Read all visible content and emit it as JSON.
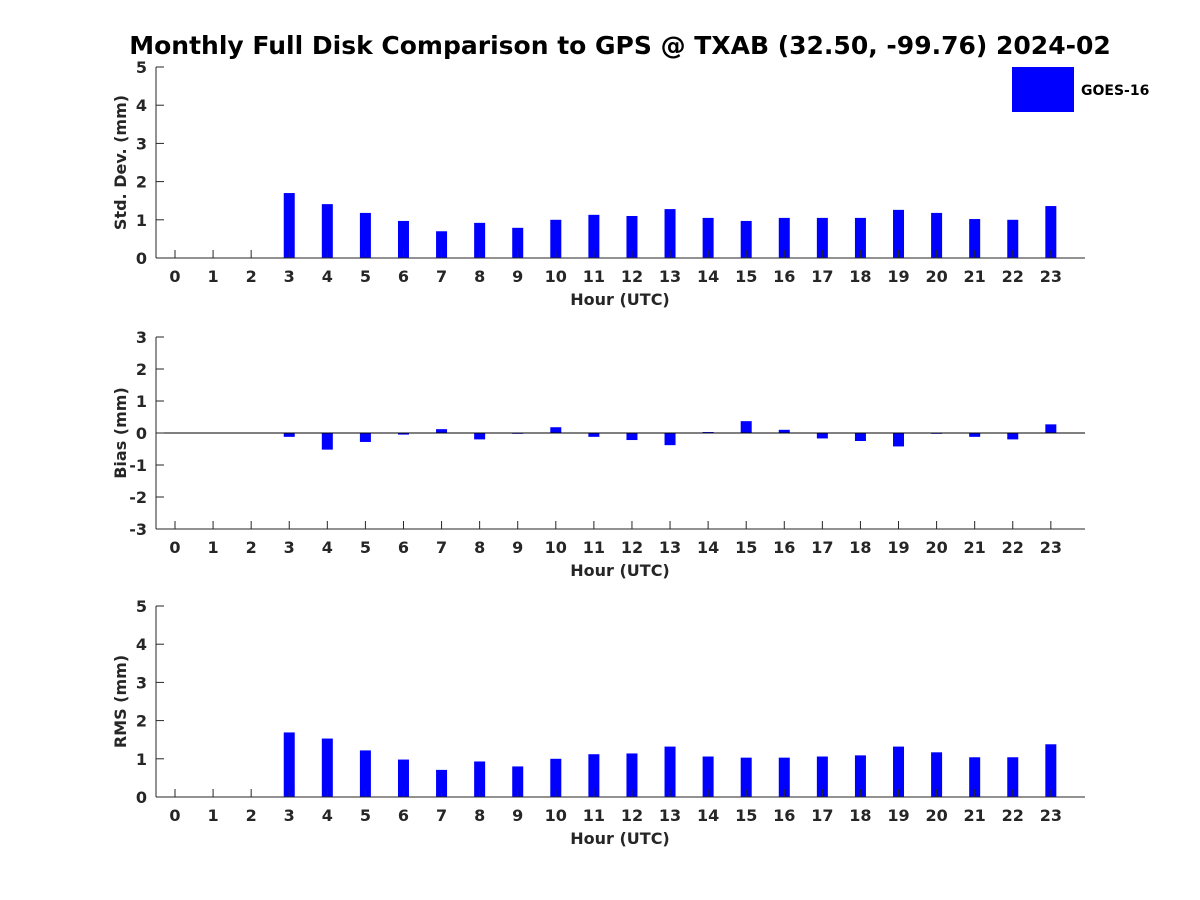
{
  "chart_data": {
    "type": "bar",
    "title": "Monthly Full Disk Comparison to GPS @ TXAB (32.50, -99.76) 2024-02",
    "colors": {
      "bar": "#0000ff",
      "axis": "#262626",
      "text": "#262626"
    },
    "legend": {
      "label": "GOES-16",
      "position": "top-right"
    },
    "categories": [
      "0",
      "1",
      "2",
      "3",
      "4",
      "5",
      "6",
      "7",
      "8",
      "9",
      "10",
      "11",
      "12",
      "13",
      "14",
      "15",
      "16",
      "17",
      "18",
      "19",
      "20",
      "21",
      "22",
      "23"
    ],
    "panels": [
      {
        "name": "std-dev",
        "ylabel": "Std. Dev. (mm)",
        "xlabel": "Hour (UTC)",
        "ylim": [
          0,
          5
        ],
        "yticks": [
          "0",
          "1",
          "2",
          "3",
          "4",
          "5"
        ],
        "series": [
          {
            "name": "GOES-16",
            "values": [
              null,
              null,
              null,
              1.7,
              1.41,
              1.18,
              0.97,
              0.7,
              0.92,
              0.79,
              1.0,
              1.13,
              1.1,
              1.28,
              1.05,
              0.97,
              1.05,
              1.05,
              1.05,
              1.26,
              1.18,
              1.02,
              1.0,
              1.36
            ]
          }
        ]
      },
      {
        "name": "bias",
        "ylabel": "Bias (mm)",
        "xlabel": "Hour (UTC)",
        "ylim": [
          -3,
          3
        ],
        "yticks": [
          "-3",
          "-2",
          "-1",
          "0",
          "1",
          "2",
          "3"
        ],
        "series": [
          {
            "name": "GOES-16",
            "values": [
              null,
              null,
              null,
              -0.12,
              -0.52,
              -0.28,
              -0.05,
              0.12,
              -0.2,
              0.0,
              0.18,
              -0.12,
              -0.22,
              -0.38,
              0.03,
              0.37,
              0.1,
              -0.17,
              -0.25,
              -0.42,
              0.0,
              -0.12,
              -0.2,
              0.27
            ]
          }
        ]
      },
      {
        "name": "rms",
        "ylabel": "RMS (mm)",
        "xlabel": "Hour (UTC)",
        "ylim": [
          0,
          5
        ],
        "yticks": [
          "0",
          "1",
          "2",
          "3",
          "4",
          "5"
        ],
        "series": [
          {
            "name": "GOES-16",
            "values": [
              null,
              null,
              null,
              1.69,
              1.53,
              1.22,
              0.98,
              0.71,
              0.93,
              0.8,
              1.0,
              1.12,
              1.14,
              1.32,
              1.06,
              1.03,
              1.03,
              1.06,
              1.09,
              1.32,
              1.17,
              1.04,
              1.04,
              1.38
            ]
          }
        ]
      }
    ]
  }
}
